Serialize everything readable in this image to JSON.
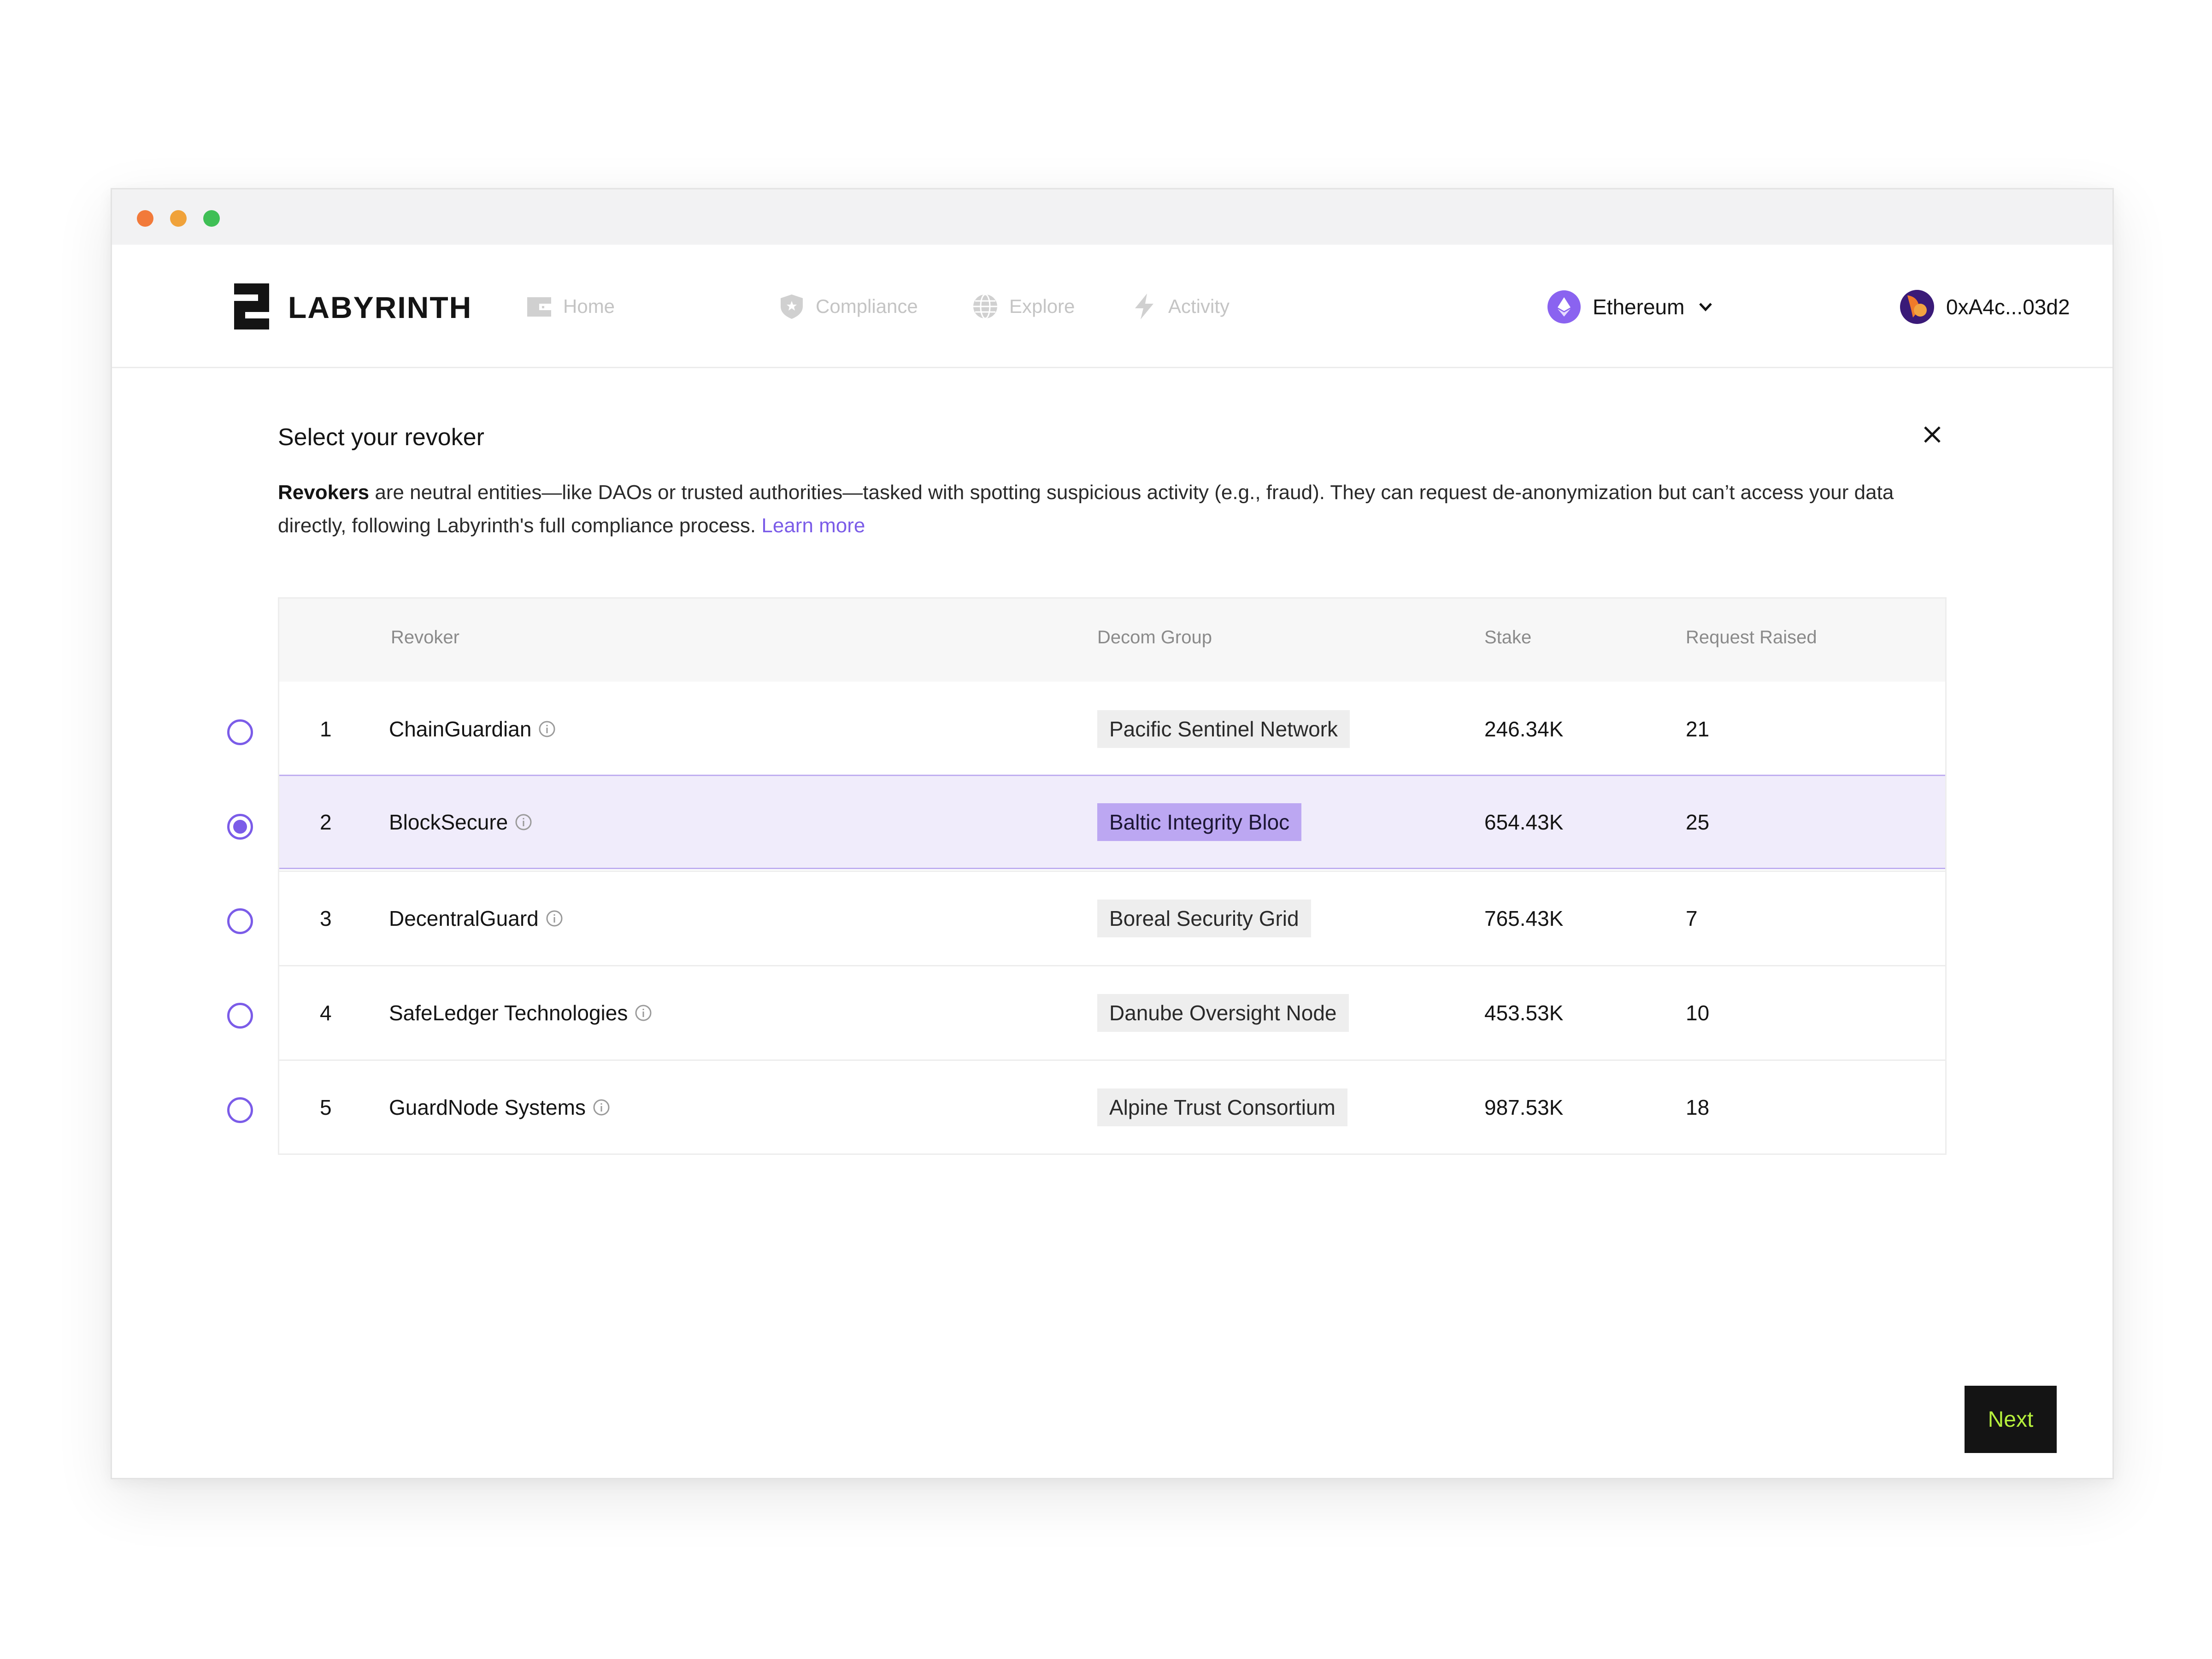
{
  "app": {
    "brand": "LABYRINTH"
  },
  "nav": [
    {
      "label": "Home",
      "icon": "wallet-icon"
    },
    {
      "label": "Compliance",
      "icon": "shield-icon"
    },
    {
      "label": "Explore",
      "icon": "globe-icon"
    },
    {
      "label": "Activity",
      "icon": "bolt-icon"
    }
  ],
  "network": {
    "label": "Ethereum",
    "icon": "ethereum-icon"
  },
  "wallet": {
    "address": "0xA4c...03d2"
  },
  "dialog": {
    "title": "Select your revoker",
    "desc_bold": "Revokers",
    "desc_text": " are neutral entities—like DAOs or trusted authorities—tasked with spotting suspicious activity (e.g., fraud). They can request de-anonymization but can’t access your data directly, following Labyrinth's full compliance process. ",
    "learn_more": "Learn more"
  },
  "table": {
    "headers": {
      "revoker": "Revoker",
      "group": "Decom Group",
      "stake": "Stake",
      "requests": "Request Raised"
    },
    "selected_index": 1,
    "rows": [
      {
        "num": "1",
        "name": "ChainGuardian",
        "group": "Pacific Sentinel Network",
        "stake": "246.34K",
        "requests": "21"
      },
      {
        "num": "2",
        "name": "BlockSecure",
        "group": "Baltic Integrity Bloc",
        "stake": "654.43K",
        "requests": "25"
      },
      {
        "num": "3",
        "name": "DecentralGuard",
        "group": "Boreal Security Grid",
        "stake": "765.43K",
        "requests": "7"
      },
      {
        "num": "4",
        "name": "SafeLedger Technologies",
        "group": "Danube Oversight Node",
        "stake": "453.53K",
        "requests": "10"
      },
      {
        "num": "5",
        "name": "GuardNode Systems",
        "group": "Alpine Trust Consortium",
        "stake": "987.53K",
        "requests": "18"
      }
    ]
  },
  "actions": {
    "next": "Next"
  },
  "colors": {
    "accent": "#7b5ce8",
    "selected_row": "#f0ecfb",
    "next_text": "#b6f03c"
  }
}
